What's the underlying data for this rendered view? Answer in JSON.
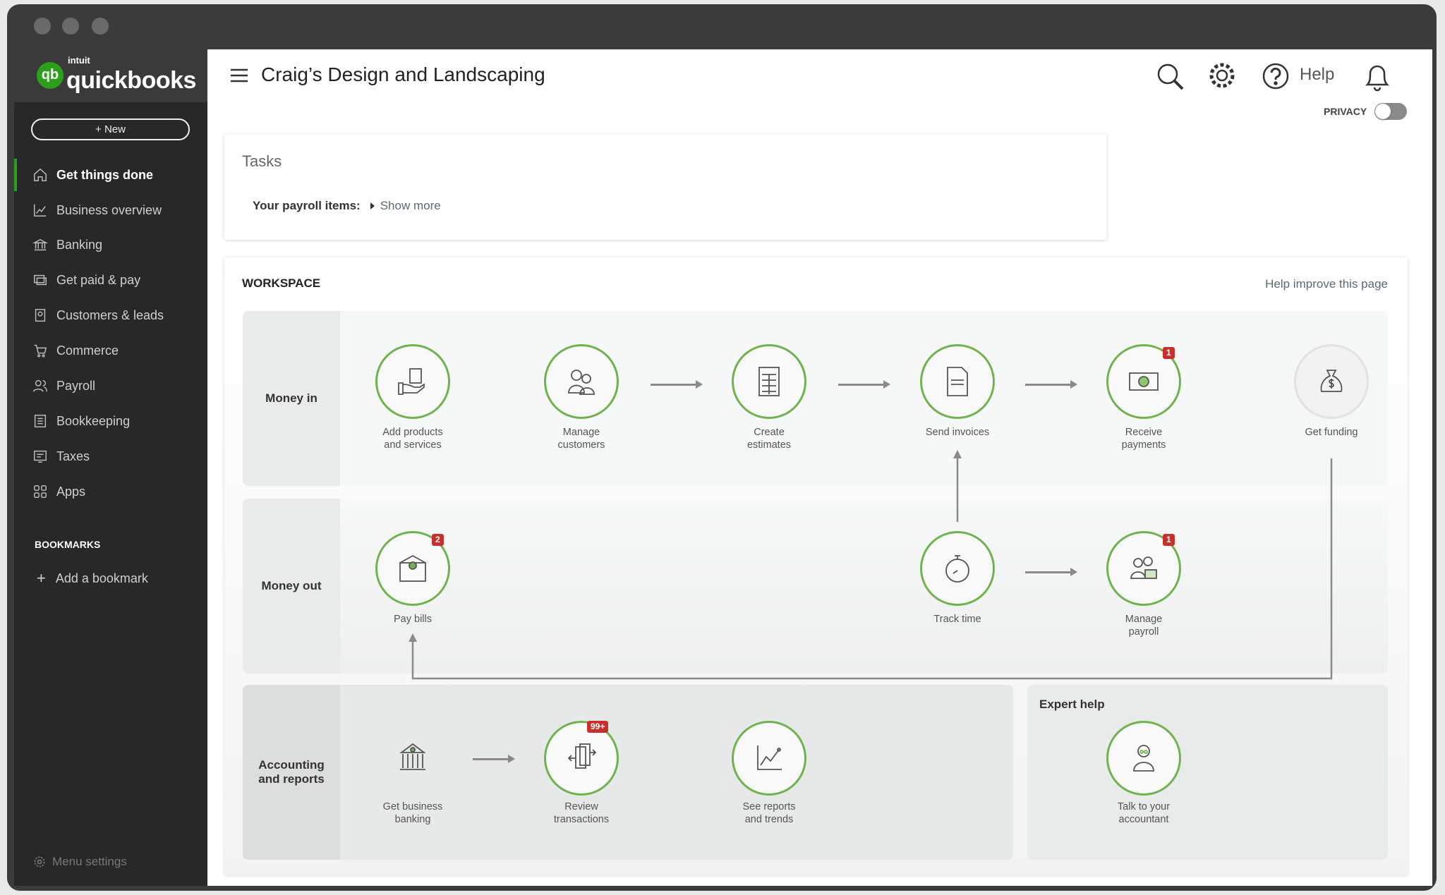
{
  "brand": {
    "intuit": "intuit",
    "name": "quickbooks",
    "mark": "qb"
  },
  "sidebar": {
    "new_label": "+  New",
    "items": [
      {
        "label": "Get things done"
      },
      {
        "label": "Business overview"
      },
      {
        "label": "Banking"
      },
      {
        "label": "Get paid & pay"
      },
      {
        "label": "Customers & leads"
      },
      {
        "label": "Commerce"
      },
      {
        "label": "Payroll"
      },
      {
        "label": "Bookkeeping"
      },
      {
        "label": "Taxes"
      },
      {
        "label": "Apps"
      }
    ],
    "bookmarks_heading": "BOOKMARKS",
    "add_bookmark": "Add a bookmark",
    "menu_settings": "Menu settings"
  },
  "header": {
    "company": "Craig’s Design and Landscaping",
    "help": "Help",
    "privacy": "PRIVACY"
  },
  "tasks": {
    "title": "Tasks",
    "payroll_label": "Your payroll items:",
    "show_more": "Show more"
  },
  "workspace": {
    "title": "WORKSPACE",
    "help_improve": "Help improve this page",
    "money_in": {
      "label": "Money in",
      "nodes": [
        {
          "label": "Add products\nand services"
        },
        {
          "label": "Manage\ncustomers"
        },
        {
          "label": "Create\nestimates"
        },
        {
          "label": "Send invoices"
        },
        {
          "label": "Receive\npayments",
          "badge": "1"
        },
        {
          "label": "Get funding"
        }
      ]
    },
    "money_out": {
      "label": "Money out",
      "nodes": [
        {
          "label": "Pay bills",
          "badge": "2"
        },
        {
          "label": "Track time"
        },
        {
          "label": "Manage\npayroll",
          "badge": "1"
        }
      ]
    },
    "accounting": {
      "label": "Accounting\nand reports",
      "nodes": [
        {
          "label": "Get business\nbanking"
        },
        {
          "label": "Review\ntransactions",
          "badge": "99+"
        },
        {
          "label": "See reports\nand trends"
        }
      ]
    },
    "expert": {
      "title": "Expert help",
      "nodes": [
        {
          "label": "Talk to your\naccountant"
        }
      ]
    }
  },
  "colors": {
    "accent": "#2ca01c",
    "badge": "#c9302c",
    "sidebar": "#282828"
  }
}
